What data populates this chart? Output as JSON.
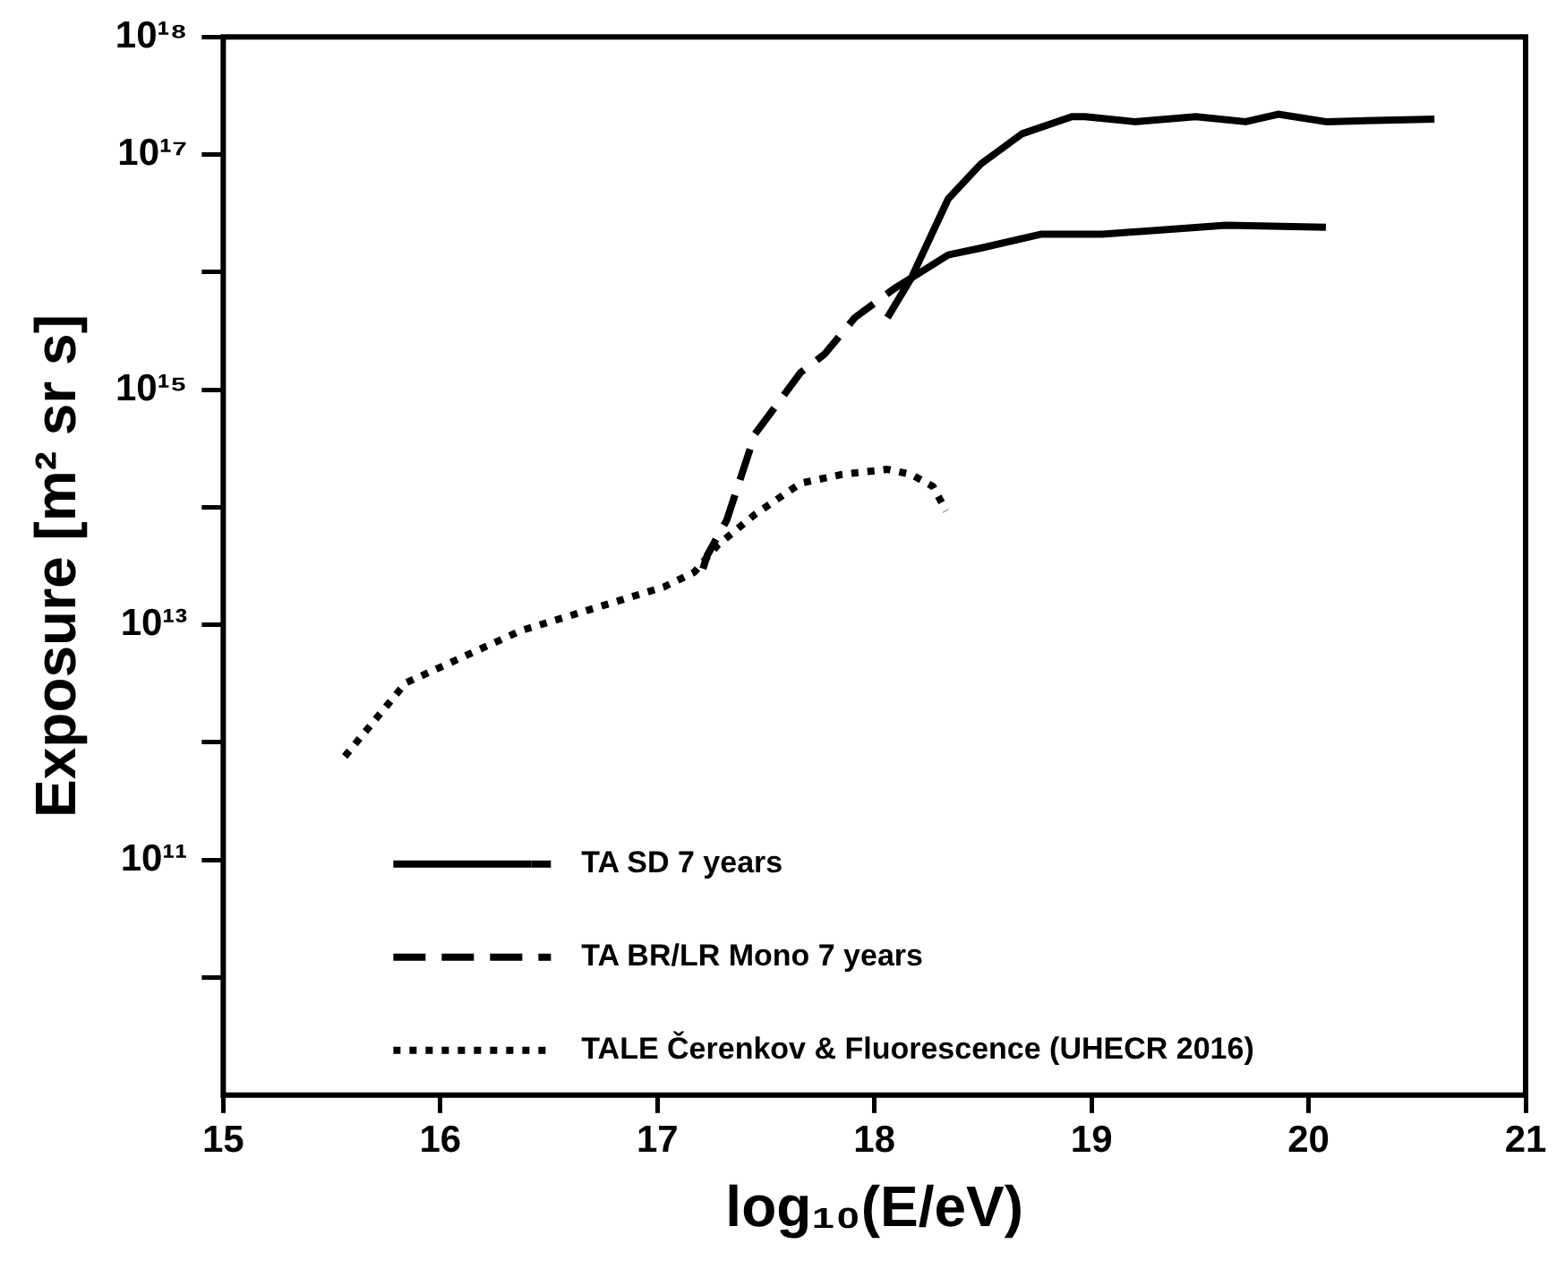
{
  "chart_data": {
    "type": "line",
    "xlabel": "log₁₀(E/eV)",
    "ylabel": "Exposure [m² sr s]",
    "log": "y",
    "legend": "bottom left",
    "xlim": [
      15,
      21
    ],
    "xticks": [
      15,
      16,
      17,
      18,
      19,
      20,
      21
    ],
    "ylim": [
      1000000000.0,
      1e+18
    ],
    "yticks": [
      {
        "value": 10000000000.0,
        "label": null
      },
      {
        "value": 100000000000.0,
        "label": "10¹¹"
      },
      {
        "value": 1000000000000.0,
        "label": null
      },
      {
        "value": 10000000000000.0,
        "label": "10¹³"
      },
      {
        "value": 100000000000000.0,
        "label": null
      },
      {
        "value": 1000000000000000.0,
        "label": "10¹⁵"
      },
      {
        "value": 1e+16,
        "label": null
      },
      {
        "value": 1e+17,
        "label": "10¹⁷"
      },
      {
        "value": 1e+18,
        "label": "10¹⁸"
      }
    ],
    "series": [
      {
        "name": "TA SD 7 years",
        "color": "#000000",
        "line_style": "solid",
        "x": [
          18.06,
          18.17,
          18.34,
          18.49,
          18.68,
          18.91,
          18.97,
          19.2,
          19.48,
          19.71,
          19.86,
          20.08,
          20.58
        ],
        "values": [
          4100000000000000.0,
          8900000000000000.0,
          4.2e+16,
          8.3e+16,
          1.5e+17,
          2.1e+17,
          2.1e+17,
          1.9e+17,
          2.1e+17,
          1.9e+17,
          2.2e+17,
          1.9e+17,
          2e+17
        ]
      },
      {
        "name": "TA BR/LR Mono 7 years",
        "color": "#000000",
        "line_style": "dashed",
        "x": [
          17.21,
          17.23,
          17.32,
          17.45,
          17.66,
          17.77,
          17.91,
          18.09,
          18.17
        ],
        "values": [
          30000000000000.0,
          39000000000000.0,
          78000000000000.0,
          420000000000000.0,
          1400000000000000.0,
          2000000000000000.0,
          4100000000000000.0,
          7200000000000000.0,
          8900000000000000.0
        ]
      },
      {
        "color": "#000000",
        "line_style": "solid",
        "x": [
          18.17,
          18.34,
          18.49,
          18.77,
          19.05,
          19.62,
          20.08
        ],
        "values": [
          8900000000000000.0,
          1.4e+16,
          1.6e+16,
          2.1e+16,
          2.1e+16,
          2.5e+16,
          2.4e+16
        ]
      },
      {
        "name": "TALE Čerenkov & Fluorescence (UHECR 2016)",
        "color": "#000000",
        "line_style": "dotted",
        "x": [
          15.56,
          15.84,
          16.37,
          16.6,
          17.03,
          17.17,
          17.28,
          17.45,
          17.66,
          17.85,
          18.06,
          18.17,
          18.27,
          18.33
        ],
        "values": [
          760000000000.0,
          3200000000000.0,
          8900000000000.0,
          12000000000000.0,
          21000000000000.0,
          28000000000000.0,
          48000000000000.0,
          87000000000000.0,
          160000000000000.0,
          190000000000000.0,
          210000000000000.0,
          190000000000000.0,
          150000000000000.0,
          93000000000000.0
        ]
      }
    ]
  }
}
